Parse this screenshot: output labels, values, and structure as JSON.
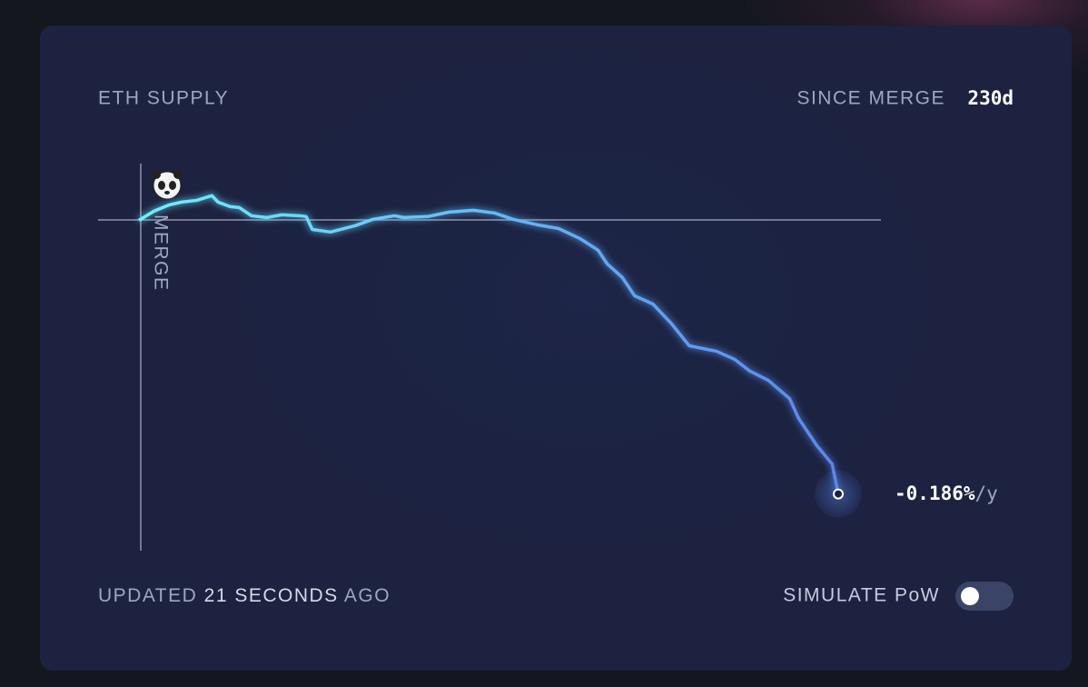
{
  "chart_data": {
    "type": "line",
    "title": "ETH SUPPLY",
    "since_merge_label": "SINCE MERGE",
    "since_merge_value": "230d",
    "annotation": "MERGE",
    "end_label": "-0.186%",
    "end_label_unit": "/y",
    "x": [
      0,
      5,
      10,
      14,
      19,
      24,
      26,
      30,
      33,
      37,
      42,
      47,
      53,
      55,
      57,
      63,
      71,
      77,
      84,
      87,
      95,
      102,
      110,
      117,
      123,
      131,
      138,
      145,
      151,
      154,
      159,
      163,
      169,
      175,
      181,
      190,
      196,
      201,
      207,
      214,
      217,
      223,
      228,
      230
    ],
    "series": [
      {
        "name": "ETH SUPPLY",
        "color": "#6ef0ff",
        "color_end": "#5a86ee",
        "values": [
          0,
          4.7,
          7.9,
          9.3,
          10.2,
          12.6,
          9.3,
          7,
          6.5,
          2.3,
          1.4,
          2.8,
          2.3,
          1.9,
          -4.7,
          -6,
          -2.8,
          0.5,
          2.3,
          1.4,
          1.9,
          4.2,
          5.1,
          3.7,
          0.5,
          -2.3,
          -4.2,
          -9.3,
          -15.3,
          -22.3,
          -29.3,
          -38.6,
          -42.8,
          -52.6,
          -64.2,
          -67,
          -71.2,
          -77.2,
          -81.9,
          -91.2,
          -101.4,
          -115.3,
          -124.7,
          -140
        ]
      }
    ],
    "xlim": [
      0,
      230
    ],
    "ylim": [
      -169,
      29
    ]
  },
  "footer": {
    "updated": "UPDATED",
    "age": "21 SECONDS",
    "ago": "AGO",
    "toggle_label": "SIMULATE PoW"
  }
}
